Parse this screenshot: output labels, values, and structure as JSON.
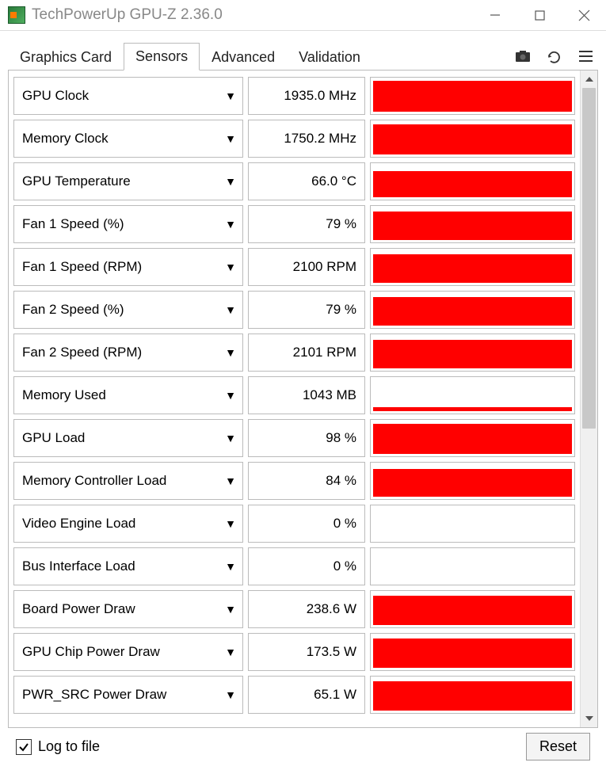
{
  "window": {
    "title": "TechPowerUp GPU-Z 2.36.0"
  },
  "tabs": {
    "items": [
      "Graphics Card",
      "Sensors",
      "Advanced",
      "Validation"
    ],
    "active_index": 1
  },
  "toolbar_icons": [
    "camera-icon",
    "refresh-icon",
    "menu-icon"
  ],
  "sensors": [
    {
      "name": "GPU Clock",
      "value": "1935.0 MHz",
      "fill_pct": 100,
      "fill_height_pct": 98
    },
    {
      "name": "Memory Clock",
      "value": "1750.2 MHz",
      "fill_pct": 100,
      "fill_height_pct": 96
    },
    {
      "name": "GPU Temperature",
      "value": "66.0 °C",
      "fill_pct": 100,
      "fill_height_pct": 82
    },
    {
      "name": "Fan 1 Speed (%)",
      "value": "79 %",
      "fill_pct": 100,
      "fill_height_pct": 90
    },
    {
      "name": "Fan 1 Speed (RPM)",
      "value": "2100 RPM",
      "fill_pct": 100,
      "fill_height_pct": 90
    },
    {
      "name": "Fan 2 Speed (%)",
      "value": "79 %",
      "fill_pct": 100,
      "fill_height_pct": 90
    },
    {
      "name": "Fan 2 Speed (RPM)",
      "value": "2101 RPM",
      "fill_pct": 100,
      "fill_height_pct": 90
    },
    {
      "name": "Memory Used",
      "value": "1043 MB",
      "fill_pct": 100,
      "fill_height_pct": 12
    },
    {
      "name": "GPU Load",
      "value": "98 %",
      "fill_pct": 100,
      "fill_height_pct": 96
    },
    {
      "name": "Memory Controller Load",
      "value": "84 %",
      "fill_pct": 100,
      "fill_height_pct": 88
    },
    {
      "name": "Video Engine Load",
      "value": "0 %",
      "fill_pct": 0,
      "fill_height_pct": 0
    },
    {
      "name": "Bus Interface Load",
      "value": "0 %",
      "fill_pct": 0,
      "fill_height_pct": 0
    },
    {
      "name": "Board Power Draw",
      "value": "238.6 W",
      "fill_pct": 100,
      "fill_height_pct": 92
    },
    {
      "name": "GPU Chip Power Draw",
      "value": "173.5 W",
      "fill_pct": 100,
      "fill_height_pct": 92
    },
    {
      "name": "PWR_SRC Power Draw",
      "value": "65.1 W",
      "fill_pct": 100,
      "fill_height_pct": 92
    }
  ],
  "footer": {
    "log_label": "Log to file",
    "log_checked": true,
    "reset_label": "Reset"
  },
  "colors": {
    "graph_fill": "#ff0000",
    "border": "#bbbbbb",
    "scroll_thumb": "#c8c8c8"
  }
}
